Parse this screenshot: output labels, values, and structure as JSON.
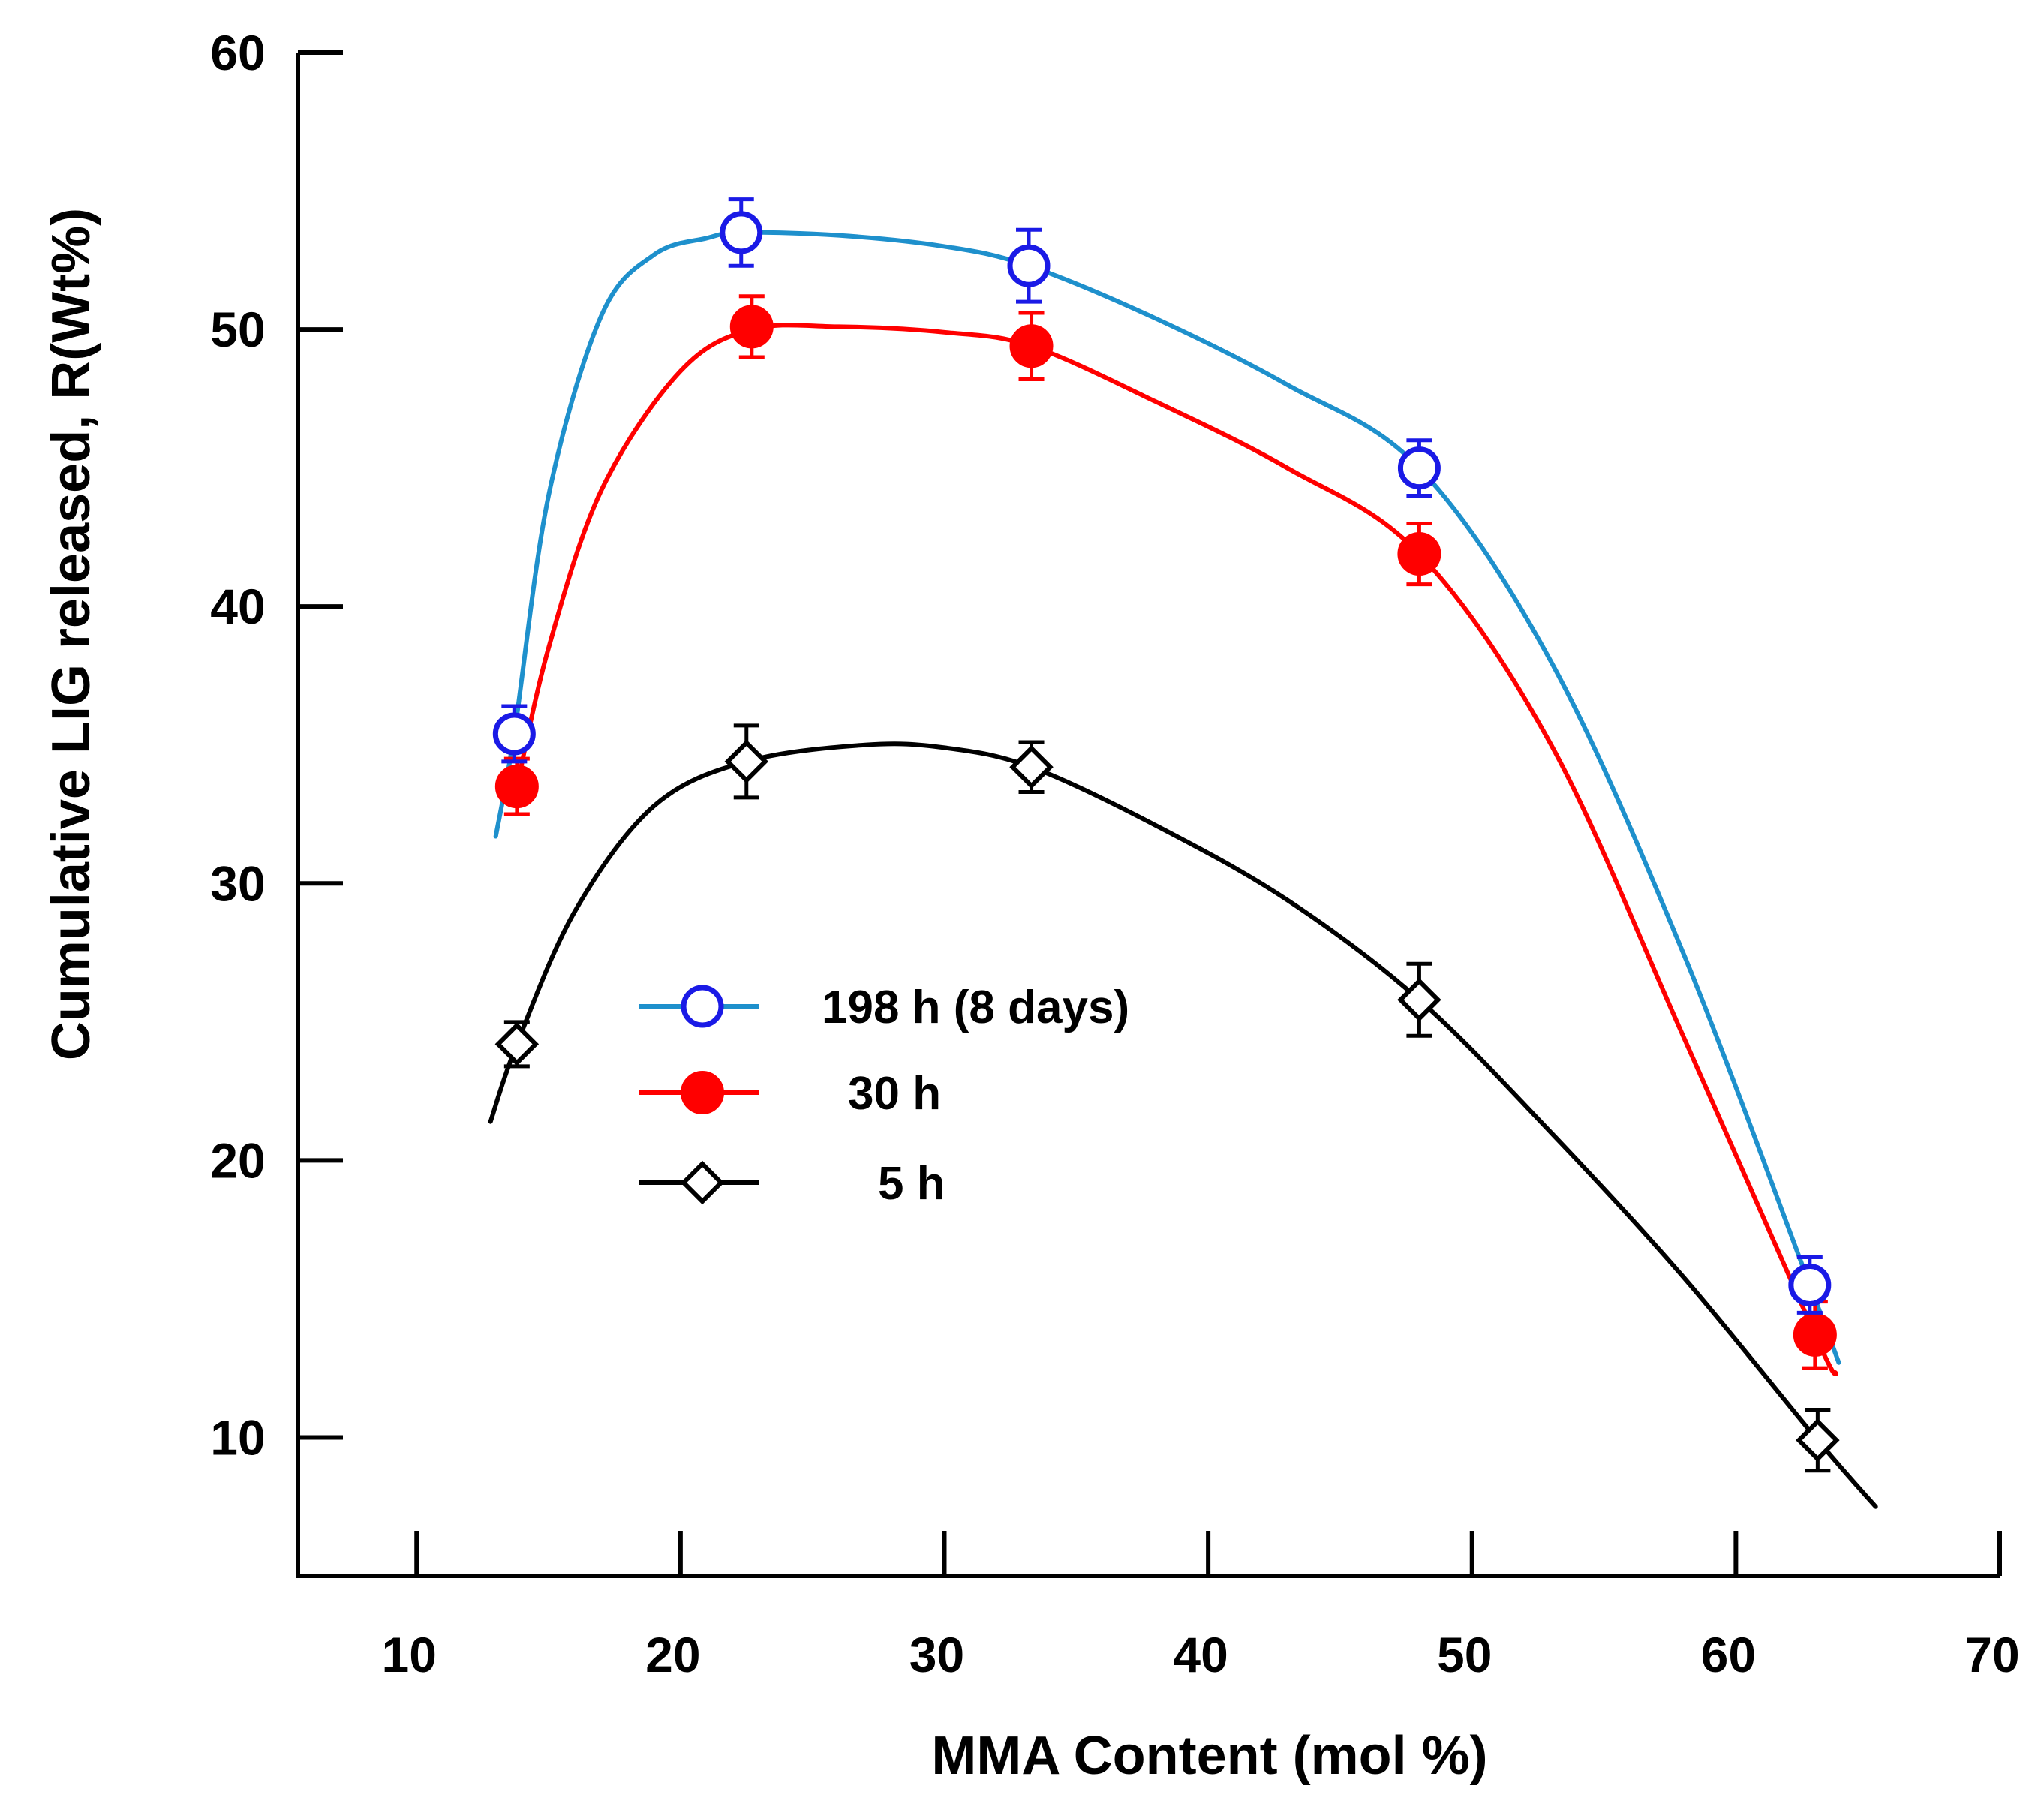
{
  "chart_data": {
    "type": "line",
    "title": "",
    "xlabel": "MMA Content (mol %)",
    "ylabel": "Cumulative LIG released, R(Wt%)",
    "xlim": [
      5.5,
      70
    ],
    "ylim": [
      5,
      60
    ],
    "xticks": [
      10,
      20,
      30,
      40,
      50,
      60,
      70
    ],
    "yticks": [
      10,
      20,
      30,
      40,
      50,
      60
    ],
    "grid": false,
    "legend_position": "center-left",
    "series": [
      {
        "name": "198 h (8 days)",
        "marker": "open-circle",
        "line_color": "#1E90CC",
        "marker_color": "#1A1AE6",
        "x": [
          13.7,
          22.3,
          33.2,
          48.0,
          62.8
        ],
        "y": [
          35.4,
          53.5,
          52.3,
          45.0,
          15.5
        ],
        "err": [
          1.0,
          1.2,
          1.3,
          1.0,
          1.0
        ],
        "curve_x": [
          13.0,
          13.7,
          15,
          17,
          19,
          21,
          22.3,
          26,
          30,
          33.2,
          38,
          43,
          48.0,
          53,
          58,
          62.8,
          63.9
        ],
        "curve_y": [
          31.7,
          35.4,
          44,
          50.5,
          52.7,
          53.3,
          53.5,
          53.4,
          53.0,
          52.3,
          50.4,
          48.0,
          45.0,
          38.0,
          27.5,
          15.5,
          12.7
        ]
      },
      {
        "name": "30 h",
        "marker": "filled-circle",
        "line_color": "#FF0000",
        "marker_color": "#FF0000",
        "x": [
          13.8,
          22.7,
          33.3,
          48.0,
          63.0
        ],
        "y": [
          33.5,
          50.1,
          49.4,
          41.9,
          13.7
        ],
        "err": [
          1.0,
          1.1,
          1.2,
          1.1,
          1.2
        ],
        "curve_x": [
          13.8,
          15,
          17,
          20,
          22.7,
          26,
          30,
          33.3,
          38,
          43,
          48.0,
          53,
          58,
          63.0,
          63.8
        ],
        "curve_y": [
          33.5,
          38.5,
          44.2,
          48.5,
          50.0,
          50.1,
          49.9,
          49.4,
          47.4,
          45.0,
          41.9,
          35.0,
          24.5,
          13.7,
          12.3
        ]
      },
      {
        "name": "5 h",
        "marker": "open-diamond",
        "line_color": "#000000",
        "marker_color": "#000000",
        "x": [
          13.8,
          22.5,
          33.3,
          48.0,
          63.1
        ],
        "y": [
          24.2,
          34.4,
          34.2,
          25.8,
          9.9
        ],
        "err": [
          0.8,
          1.3,
          0.9,
          1.3,
          1.1
        ],
        "curve_x": [
          12.8,
          13.8,
          16,
          19,
          22.5,
          27,
          30,
          33.3,
          38,
          43,
          48.0,
          53,
          58,
          63.1,
          65.3
        ],
        "curve_y": [
          21.4,
          24.2,
          29.0,
          32.8,
          34.4,
          35.0,
          34.9,
          34.2,
          32.1,
          29.4,
          25.8,
          21.0,
          15.8,
          9.9,
          7.5
        ]
      }
    ]
  }
}
